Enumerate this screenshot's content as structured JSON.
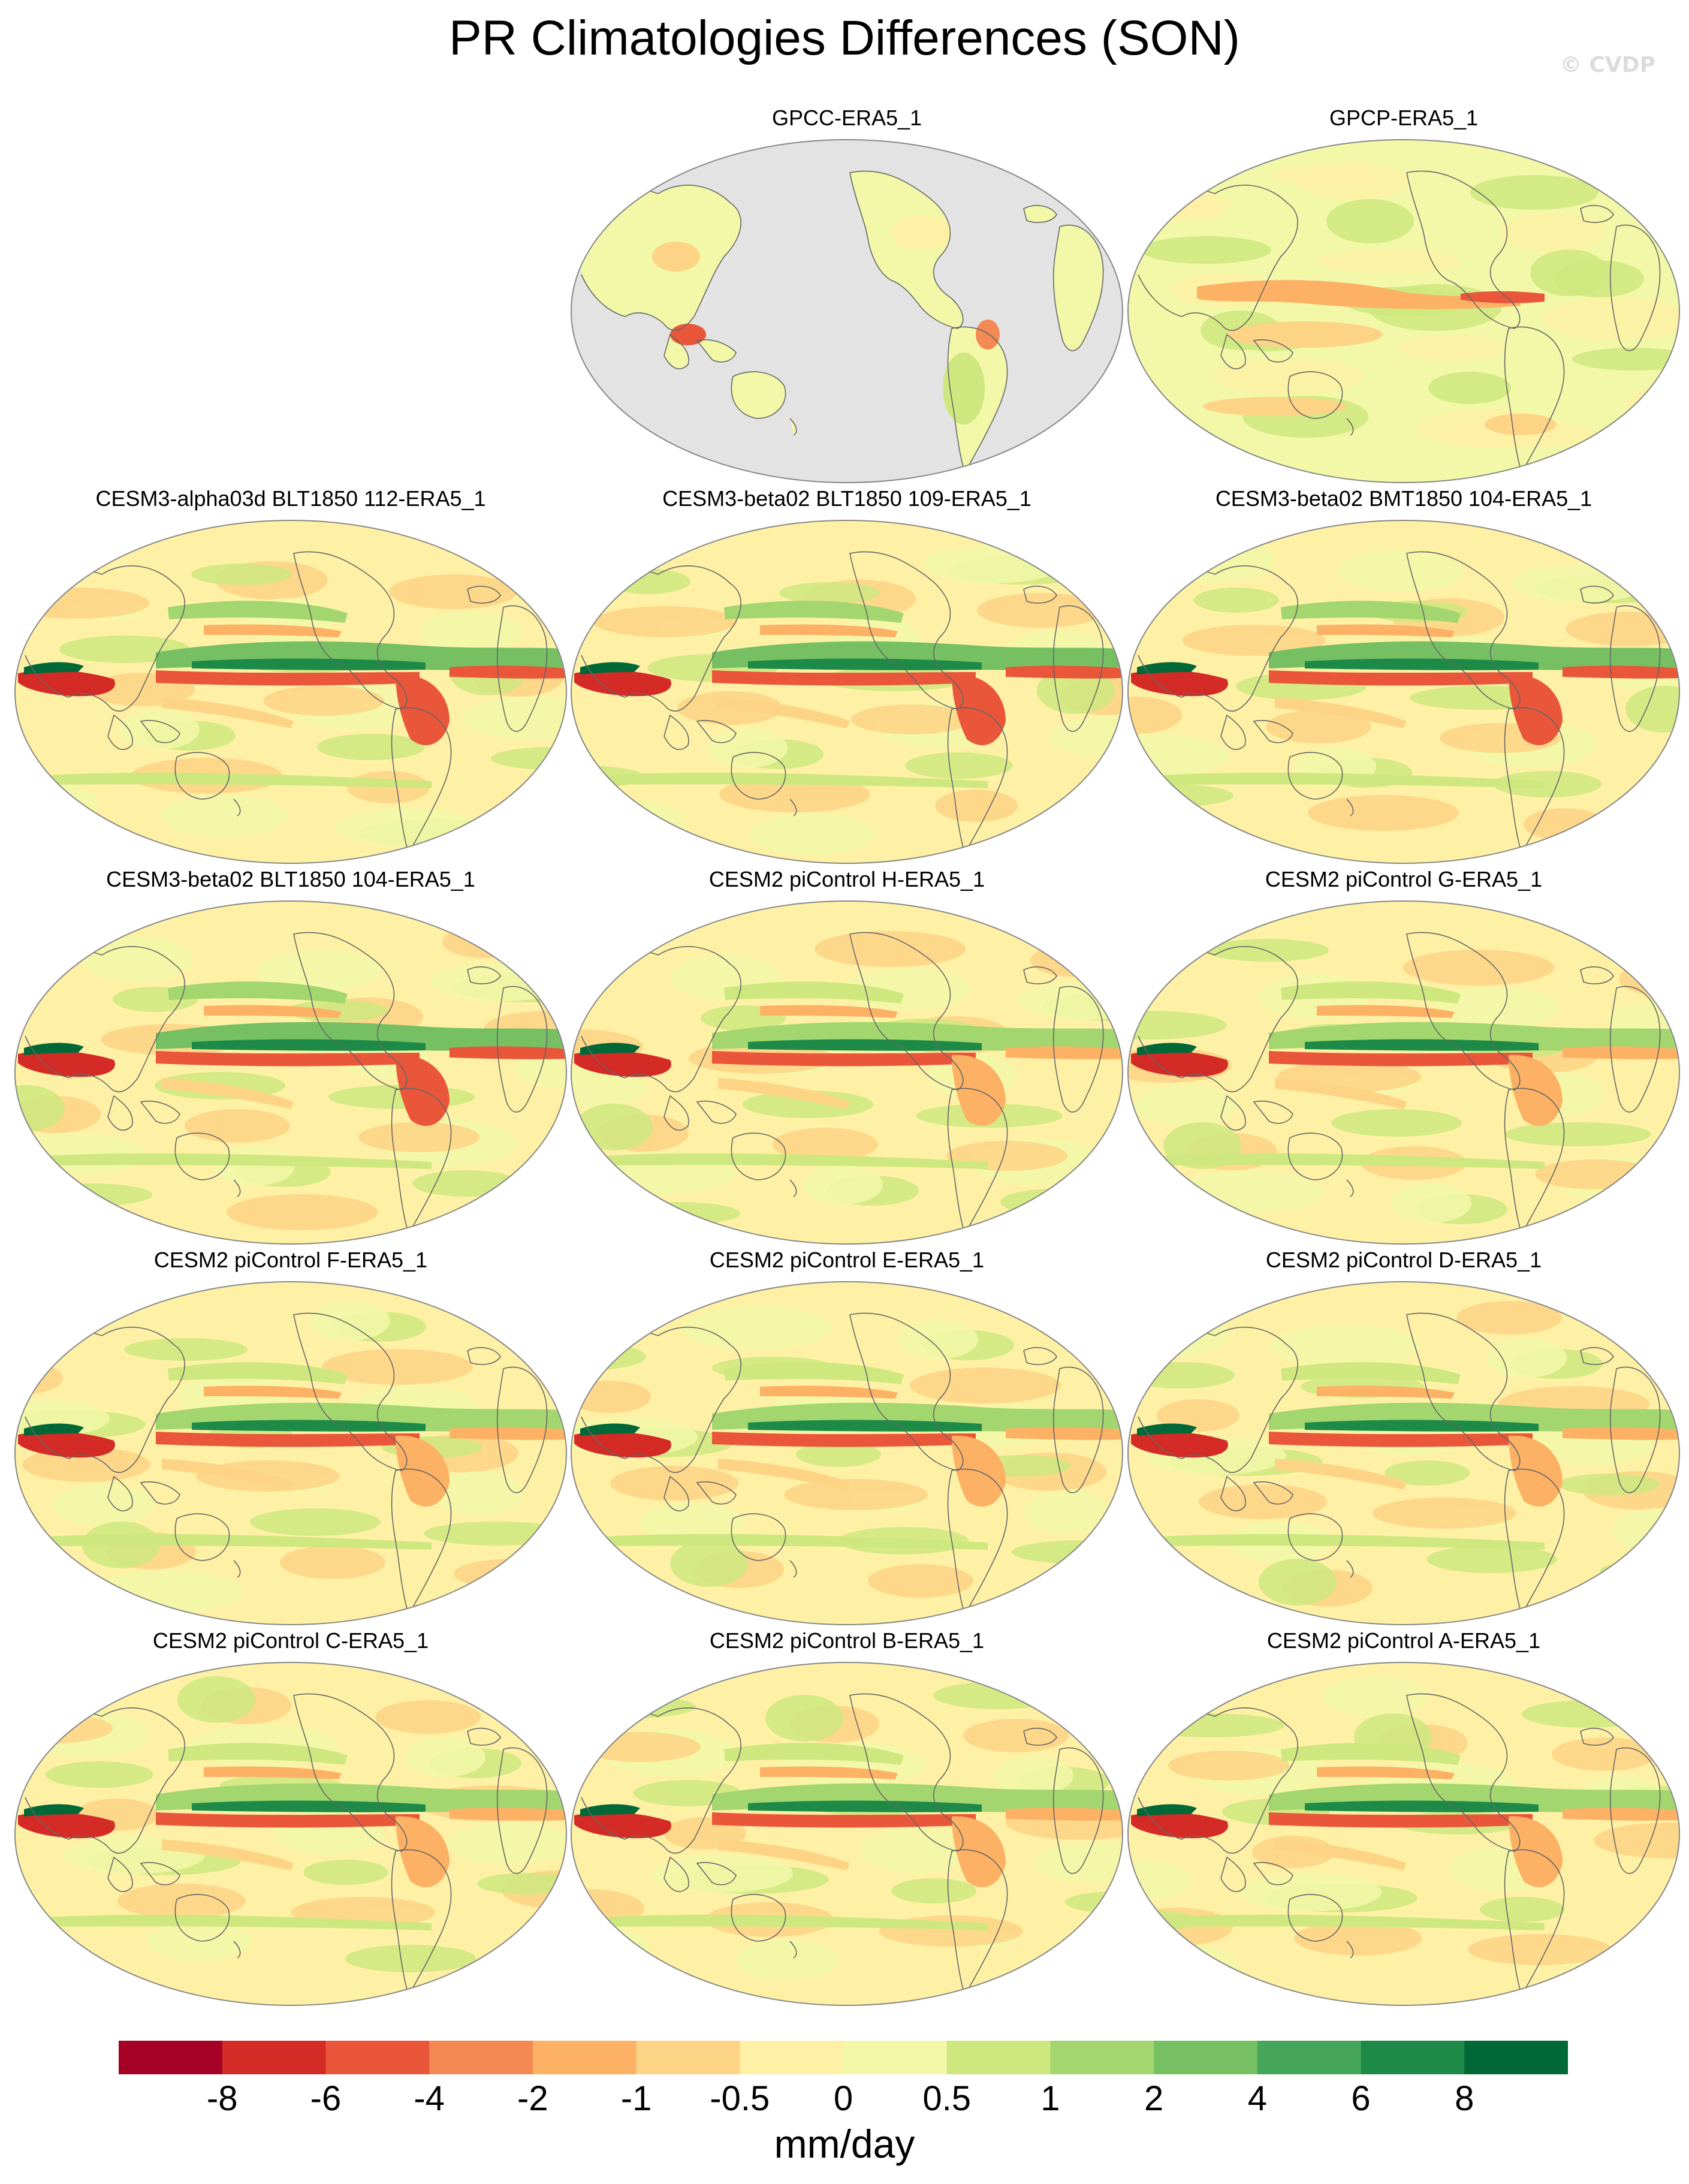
{
  "title": "PR Climatologies Differences (SON)",
  "watermark": "© CVDP",
  "panels": [
    {
      "label": "GPCC-ERA5_1",
      "kind": "land"
    },
    {
      "label": "GPCP-ERA5_1",
      "kind": "obs"
    },
    {
      "label": "CESM3-alpha03d BLT1850 112-ERA5_1",
      "kind": "model"
    },
    {
      "label": "CESM3-beta02 BLT1850 109-ERA5_1",
      "kind": "model"
    },
    {
      "label": "CESM3-beta02 BMT1850 104-ERA5_1",
      "kind": "model"
    },
    {
      "label": "CESM3-beta02 BLT1850 104-ERA5_1",
      "kind": "model"
    },
    {
      "label": "CESM2 piControl H-ERA5_1",
      "kind": "model2"
    },
    {
      "label": "CESM2 piControl G-ERA5_1",
      "kind": "model2"
    },
    {
      "label": "CESM2 piControl F-ERA5_1",
      "kind": "model2"
    },
    {
      "label": "CESM2 piControl E-ERA5_1",
      "kind": "model2"
    },
    {
      "label": "CESM2 piControl D-ERA5_1",
      "kind": "model2"
    },
    {
      "label": "CESM2 piControl C-ERA5_1",
      "kind": "model2"
    },
    {
      "label": "CESM2 piControl B-ERA5_1",
      "kind": "model2"
    },
    {
      "label": "CESM2 piControl A-ERA5_1",
      "kind": "model2"
    }
  ],
  "colorbar": {
    "units": "mm/day",
    "levels": [
      "-8",
      "-6",
      "-4",
      "-2",
      "-1",
      "-0.5",
      "0",
      "0.5",
      "1",
      "2",
      "4",
      "6",
      "8"
    ],
    "colors": [
      "#a50026",
      "#d42b27",
      "#e9563a",
      "#f48953",
      "#fcb165",
      "#fdd486",
      "#fef1a6",
      "#f2f8a8",
      "#cee77f",
      "#a3d66e",
      "#76c063",
      "#45a65a",
      "#1d8b47",
      "#006837"
    ]
  },
  "map_colors": {
    "missing": "#e3e3e3",
    "coast": "#666666",
    "border": "#888888"
  }
}
